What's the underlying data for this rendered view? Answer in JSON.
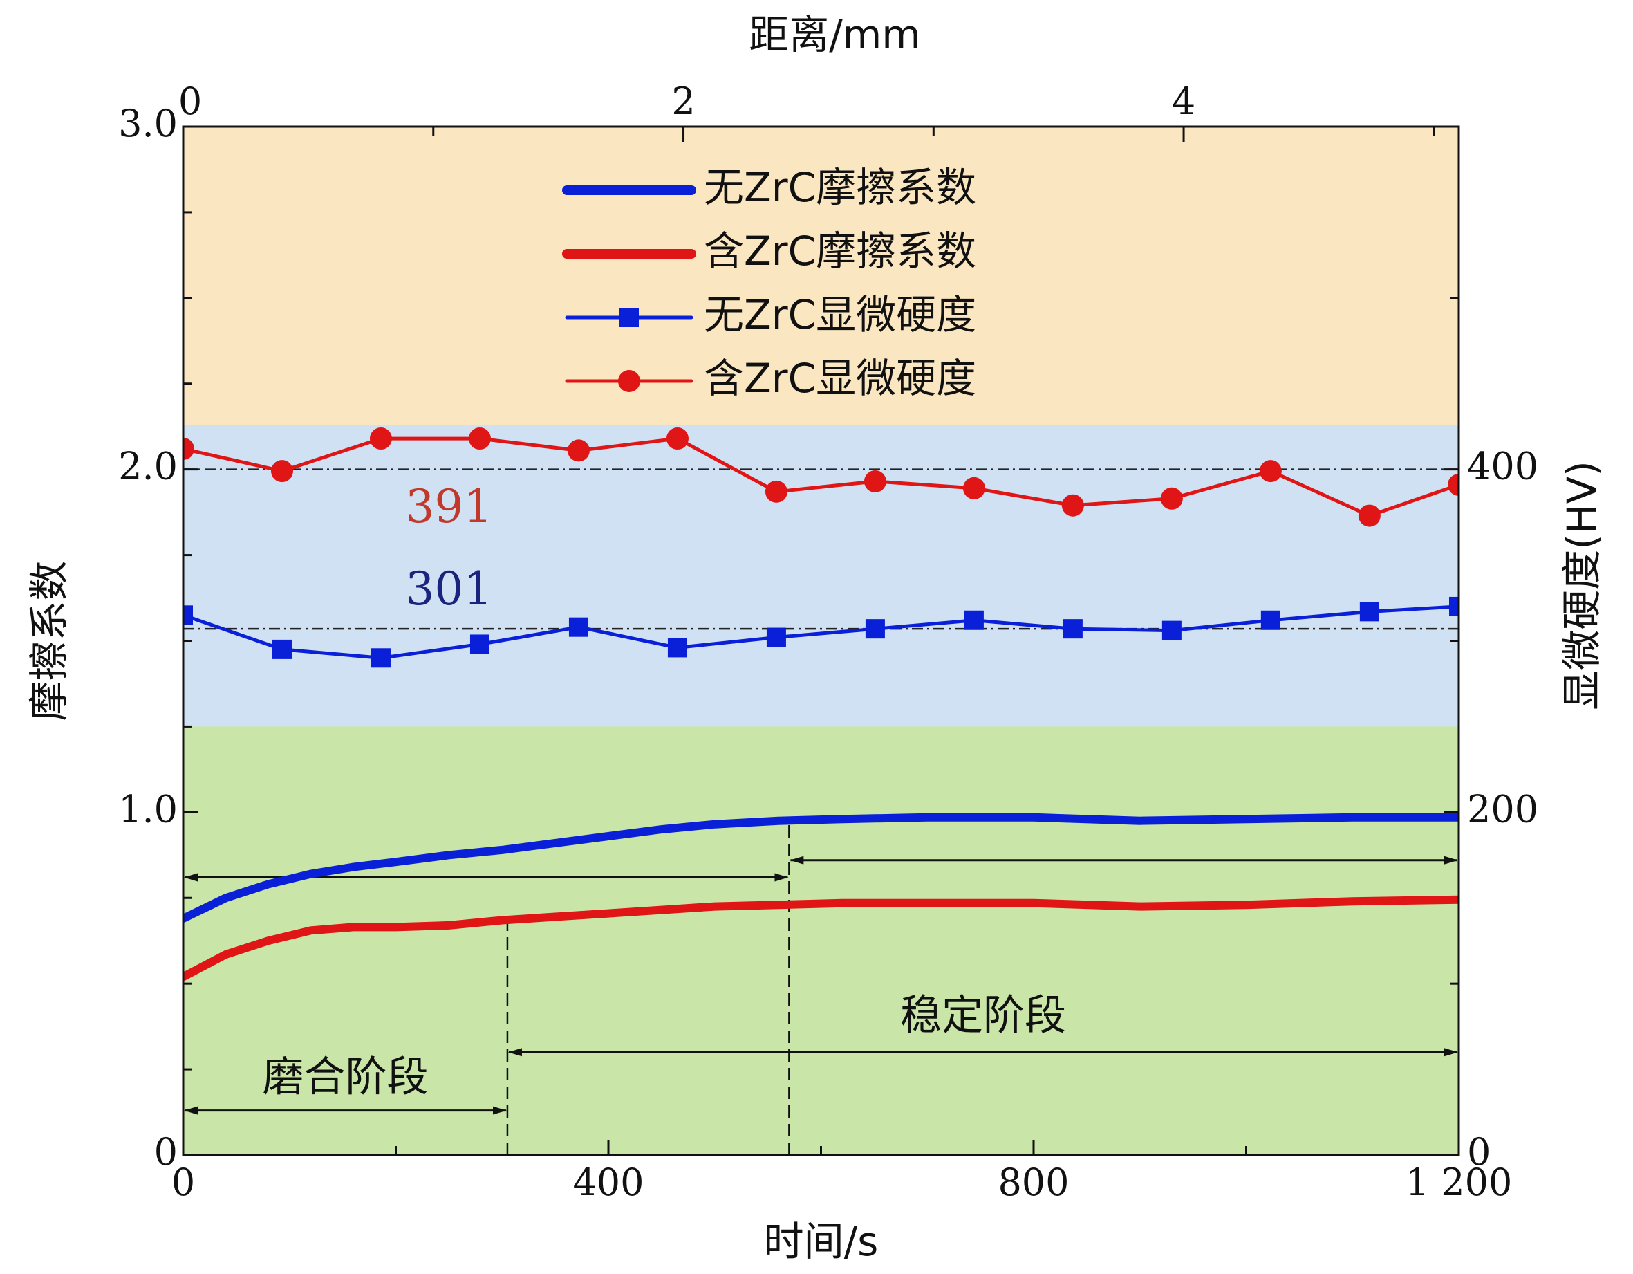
{
  "chart_data": {
    "type": "line",
    "xlabel": "时间/s",
    "x2label": "距离/mm",
    "ylabel": "摩擦系数",
    "y2label": "显微硬度(HV)",
    "xlim": [
      0,
      1200
    ],
    "x2lim": [
      0,
      5.1
    ],
    "ylim": [
      0,
      3.0
    ],
    "y2lim": [
      0,
      600
    ],
    "x_ticks": [
      {
        "value": 0,
        "label": "0"
      },
      {
        "value": 400,
        "label": "400"
      },
      {
        "value": 800,
        "label": "800"
      },
      {
        "value": 1200,
        "label": "1 200"
      }
    ],
    "x2_ticks": [
      {
        "value": 0,
        "label": "0"
      },
      {
        "value": 2,
        "label": "2"
      },
      {
        "value": 4,
        "label": "4"
      }
    ],
    "y_ticks": [
      {
        "value": 0,
        "label": "0"
      },
      {
        "value": 1.0,
        "label": "1.0"
      },
      {
        "value": 2.0,
        "label": "2.0"
      },
      {
        "value": 3.0,
        "label": "3.0"
      }
    ],
    "y2_ticks": [
      {
        "value": 0,
        "label": "0"
      },
      {
        "value": 200,
        "label": "200"
      },
      {
        "value": 400,
        "label": "400"
      }
    ],
    "bands": [
      {
        "axis": "y",
        "from": 2.13,
        "to": 3.0,
        "color": "#fbe6c2"
      },
      {
        "axis": "y",
        "from": 1.25,
        "to": 2.13,
        "color": "#cfe1f2"
      },
      {
        "axis": "y",
        "from": 0,
        "to": 1.25,
        "color": "#c9e5a8"
      }
    ],
    "series": [
      {
        "name": "无ZrC摩擦系数",
        "axis": "y",
        "marker": "none",
        "color": "#0a1fd8",
        "x": [
          0,
          40,
          80,
          120,
          160,
          200,
          250,
          300,
          350,
          400,
          450,
          500,
          560,
          620,
          700,
          800,
          900,
          1000,
          1100,
          1200
        ],
        "y": [
          0.69,
          0.75,
          0.79,
          0.82,
          0.84,
          0.855,
          0.875,
          0.89,
          0.91,
          0.93,
          0.95,
          0.965,
          0.975,
          0.98,
          0.985,
          0.985,
          0.975,
          0.98,
          0.985,
          0.985
        ]
      },
      {
        "name": "含ZrC摩擦系数",
        "axis": "y",
        "marker": "none",
        "color": "#e01515",
        "x": [
          0,
          40,
          80,
          120,
          160,
          200,
          250,
          300,
          350,
          400,
          450,
          500,
          560,
          620,
          700,
          800,
          900,
          1000,
          1100,
          1200
        ],
        "y": [
          0.52,
          0.585,
          0.625,
          0.655,
          0.665,
          0.665,
          0.67,
          0.685,
          0.695,
          0.705,
          0.715,
          0.725,
          0.73,
          0.735,
          0.735,
          0.735,
          0.725,
          0.73,
          0.74,
          0.745
        ]
      },
      {
        "name": "无ZrC显微硬度",
        "axis": "y2",
        "marker": "square",
        "color": "#0a1fd8",
        "x": [
          0,
          93,
          186,
          279,
          372,
          465,
          558,
          651,
          744,
          837,
          930,
          1023,
          1116,
          1200
        ],
        "y": [
          315,
          295,
          290,
          298,
          308,
          296,
          302,
          307,
          312,
          307,
          306,
          312,
          317,
          320
        ]
      },
      {
        "name": "含ZrC显微硬度",
        "axis": "y2",
        "marker": "circle",
        "color": "#e01515",
        "x": [
          0,
          93,
          186,
          279,
          372,
          465,
          558,
          651,
          744,
          837,
          930,
          1023,
          1116,
          1200
        ],
        "y": [
          412,
          399,
          418,
          418,
          411,
          418,
          387,
          393,
          389,
          379,
          383,
          399,
          373,
          391
        ]
      }
    ],
    "reference_lines": [
      {
        "axis": "y2",
        "value": 400,
        "style": "dash-dot"
      },
      {
        "axis": "y2",
        "value": 307,
        "style": "dash-dot"
      }
    ],
    "annotations": [
      {
        "text": "391",
        "color": "#c0392b",
        "x": 250,
        "y2": 376
      },
      {
        "text": "301",
        "color": "#1a237e",
        "x": 250,
        "y2": 328
      }
    ],
    "stages": [
      {
        "label": "磨合阶段",
        "from": 0,
        "to": 305,
        "arrow_y": 0.13,
        "label_y": 0.22
      },
      {
        "label": "稳定阶段",
        "from": 305,
        "to": 1200,
        "arrow_y": 0.3,
        "label_y": 0.4
      },
      {
        "label": "",
        "from": 0,
        "to": 570,
        "arrow_y": 0.81
      },
      {
        "label": "",
        "from": 570,
        "to": 1200,
        "arrow_y": 0.86
      }
    ],
    "stage_dividers": [
      {
        "x": 305,
        "from": 0,
        "to": 0.68
      },
      {
        "x": 570,
        "from": 0,
        "to": 0.97
      }
    ],
    "legend": {
      "position": "top-center"
    },
    "grid": false
  }
}
